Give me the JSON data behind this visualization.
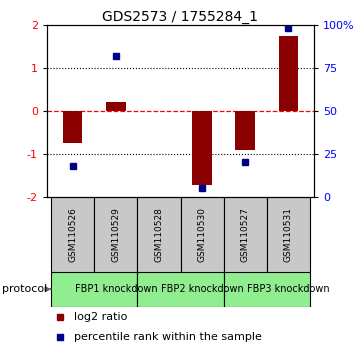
{
  "title": "GDS2573 / 1755284_1",
  "samples": [
    "GSM110526",
    "GSM110529",
    "GSM110528",
    "GSM110530",
    "GSM110527",
    "GSM110531"
  ],
  "log2_ratio": [
    -0.75,
    0.2,
    0.0,
    -1.72,
    -0.92,
    1.75
  ],
  "percentile_rank": [
    18,
    82,
    null,
    5,
    20,
    98
  ],
  "ylim": [
    -2,
    2
  ],
  "ylim_right": [
    0,
    100
  ],
  "groups": [
    {
      "label": "FBP1 knockdown",
      "start": 0,
      "end": 2,
      "color": "#90EE90"
    },
    {
      "label": "FBP2 knockdown",
      "start": 2,
      "end": 4,
      "color": "#90EE90"
    },
    {
      "label": "FBP3 knockdown",
      "start": 4,
      "end": 6,
      "color": "#90EE90"
    }
  ],
  "bar_color": "#8B0000",
  "dot_color": "#00008B",
  "zero_line_color": "#FF0000",
  "dotted_line_color": "#000000",
  "bg_color": "#FFFFFF",
  "plot_bg": "#FFFFFF",
  "sample_box_color": "#C8C8C8",
  "legend_red_label": "log2 ratio",
  "legend_blue_label": "percentile rank within the sample"
}
